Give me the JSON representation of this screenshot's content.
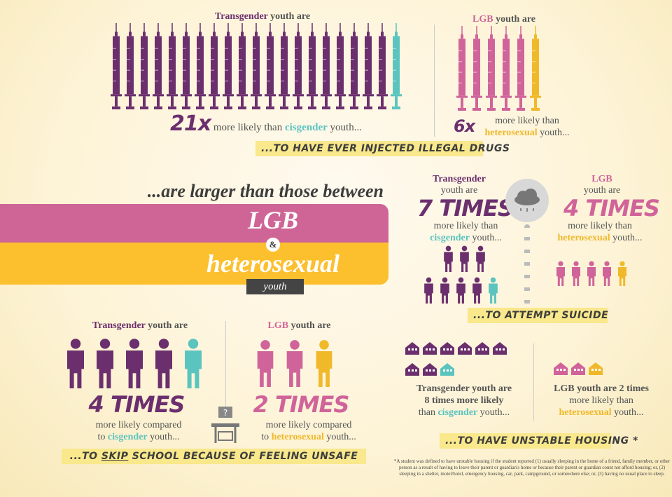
{
  "colors": {
    "transgender": "#6b2f6e",
    "cisgender": "#5bc4bf",
    "lgb": "#d0649a",
    "heterosexual": "#f0b92a",
    "background": "#fdf3d6"
  },
  "drugs": {
    "trans": {
      "pre": "Transgender",
      "post": " youth are",
      "multiplier": "21x",
      "more": " more likely than ",
      "comp": "cisgender",
      "youth": " youth...",
      "icon": "syringe-icon",
      "highlighted": 20,
      "total": 21
    },
    "lgb": {
      "pre": "LGB",
      "post": " youth are",
      "multiplier": "6x",
      "more": "more likely than",
      "comp": "heterosexual",
      "youth": " youth...",
      "icon": "syringe-icon",
      "highlighted": 5,
      "total": 6
    },
    "banner": "...to have ever injected illegal drugs"
  },
  "middle": {
    "heading": "...are larger than those between",
    "lgb": "LGB",
    "amp": "&",
    "hetero": "heterosexual",
    "youth": "youth"
  },
  "suicide": {
    "trans": {
      "pre": "Transgender",
      "post": "youth are",
      "times": "7 TIMES",
      "more": "more likely than",
      "comp": "cisgender",
      "youth": " youth...",
      "highlighted": 7,
      "total": 8
    },
    "lgb": {
      "pre": "LGB",
      "post": "youth are",
      "times": "4 TIMES",
      "more": "more likely than",
      "comp": "heterosexual",
      "youth": " youth...",
      "highlighted": 4,
      "total": 5
    },
    "icon": "rain-cloud-icon",
    "banner": "...to attempt suicide"
  },
  "school": {
    "trans": {
      "pre": "Transgender",
      "post": " youth are",
      "times": "4 TIMES",
      "more": "more likely compared",
      "to": "to ",
      "comp": "cisgender",
      "youth": " youth...",
      "highlighted": 4,
      "total": 5
    },
    "lgb": {
      "pre": "LGB",
      "post": " youth are",
      "times": "2 TIMES",
      "more": "more likely compared",
      "to": "to ",
      "comp": "heterosexual",
      "youth": " youth...",
      "highlighted": 2,
      "total": 3
    },
    "desk_icon": "school-desk-icon",
    "desk_mark": "?",
    "banner_pre": "...to ",
    "banner_skip": "skip",
    "banner_post": " school because of feeling unsafe"
  },
  "housing": {
    "trans": {
      "l1": "Transgender youth are",
      "l2": "8 times more likely",
      "l3a": "than ",
      "comp": "cisgender",
      "l3b": " youth...",
      "highlighted": 8,
      "total": 9
    },
    "lgb": {
      "l1": "LGB youth are 2 times",
      "l2": "more likely than",
      "comp": "heterosexual",
      "l3b": " youth...",
      "highlighted": 2,
      "total": 3
    },
    "icon": "house-icon",
    "banner": "...to have unstable housing *",
    "footnote": "*A student was defined to have unstable housing if the student reported (1) usually sleeping in the home of a friend, family member, or other person as a result of having to leave their parent or guardian's home or because their parent or guardian count not afford housing; or, (2) sleeping in a shelter, motel/hotel, emergency housing, car, park, campground, or somewhere else; or, (3) having no usual place to sleep."
  }
}
